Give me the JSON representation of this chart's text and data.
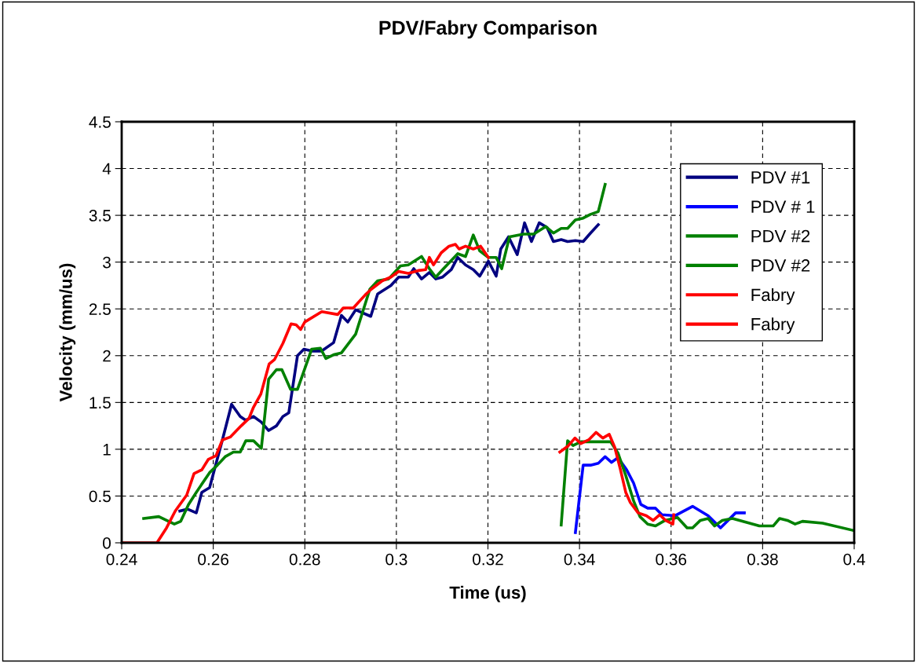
{
  "chart_data": {
    "type": "line",
    "title": "PDV/Fabry Comparison",
    "xlabel": "Time (us)",
    "ylabel": "Velocity (mm/us)",
    "xlim": [
      0.24,
      0.4
    ],
    "xticks": [
      0.24,
      0.26,
      0.28,
      0.3,
      0.32,
      0.34,
      0.36,
      0.38,
      0.4
    ],
    "ylim": [
      0,
      4.5
    ],
    "yticks": [
      0,
      0.5,
      1,
      1.5,
      2,
      2.5,
      3,
      3.5,
      4,
      4.5
    ],
    "grid": true,
    "legend": "top right",
    "line_style": "solid",
    "series": [
      {
        "name": "PDV #1",
        "color": "#000080",
        "x": [
          0.2527,
          0.2544,
          0.2563,
          0.2575,
          0.2592,
          0.262,
          0.264,
          0.2659,
          0.2671,
          0.2688,
          0.2705,
          0.2721,
          0.2738,
          0.2752,
          0.2765,
          0.2784,
          0.2798,
          0.2815,
          0.2837,
          0.2863,
          0.288,
          0.2894,
          0.2911,
          0.2944,
          0.2959,
          0.2988,
          0.3005,
          0.3026,
          0.3038,
          0.3055,
          0.3072,
          0.3086,
          0.3101,
          0.312,
          0.3134,
          0.3151,
          0.3168,
          0.3182,
          0.3201,
          0.3218,
          0.3228,
          0.3245,
          0.3264,
          0.328,
          0.3295,
          0.3312,
          0.3329,
          0.3343,
          0.336,
          0.3374,
          0.3391,
          0.3408,
          0.3424,
          0.3441
        ],
        "values": [
          0.34,
          0.36,
          0.32,
          0.54,
          0.59,
          1.1,
          1.48,
          1.35,
          1.31,
          1.35,
          1.29,
          1.2,
          1.25,
          1.35,
          1.39,
          2.0,
          2.07,
          2.05,
          2.05,
          2.14,
          2.43,
          2.36,
          2.49,
          2.42,
          2.66,
          2.75,
          2.84,
          2.84,
          2.93,
          2.82,
          2.89,
          2.82,
          2.84,
          2.92,
          3.05,
          2.97,
          2.92,
          2.85,
          3.01,
          2.85,
          3.14,
          3.27,
          3.08,
          3.42,
          3.22,
          3.42,
          3.37,
          3.22,
          3.24,
          3.22,
          3.23,
          3.22,
          3.31,
          3.4
        ]
      },
      {
        "name": "PDV # 1",
        "color": "#0000ff",
        "x": [
          0.3391,
          0.3408,
          0.3424,
          0.3441,
          0.3456,
          0.347,
          0.3484,
          0.3503,
          0.3518,
          0.3534,
          0.3549,
          0.3566,
          0.358,
          0.3609,
          0.3647,
          0.3681,
          0.3708,
          0.3741,
          0.376
        ],
        "values": [
          0.11,
          0.83,
          0.83,
          0.85,
          0.92,
          0.86,
          0.91,
          0.78,
          0.64,
          0.41,
          0.37,
          0.37,
          0.3,
          0.29,
          0.39,
          0.29,
          0.16,
          0.32,
          0.32
        ]
      },
      {
        "name": "PDV #2",
        "color": "#008000",
        "x": [
          0.2448,
          0.2481,
          0.2515,
          0.2529,
          0.2546,
          0.2563,
          0.2592,
          0.2609,
          0.2626,
          0.2644,
          0.2659,
          0.2671,
          0.2688,
          0.2705,
          0.2721,
          0.2738,
          0.275,
          0.2769,
          0.2784,
          0.2815,
          0.2834,
          0.2846,
          0.2863,
          0.288,
          0.2911,
          0.2942,
          0.2959,
          0.2983,
          0.3009,
          0.3026,
          0.3055,
          0.3072,
          0.3086,
          0.3103,
          0.3134,
          0.3151,
          0.3168,
          0.3182,
          0.3201,
          0.3218,
          0.323,
          0.3247,
          0.3278,
          0.33,
          0.3326,
          0.3343,
          0.336,
          0.3374,
          0.3391,
          0.3408,
          0.3424,
          0.3441,
          0.3456
        ],
        "values": [
          0.26,
          0.28,
          0.2,
          0.23,
          0.41,
          0.54,
          0.75,
          0.83,
          0.92,
          0.97,
          0.97,
          1.09,
          1.09,
          1.01,
          1.75,
          1.85,
          1.85,
          1.64,
          1.64,
          2.07,
          2.08,
          1.97,
          2.01,
          2.03,
          2.23,
          2.71,
          2.8,
          2.82,
          2.96,
          2.97,
          3.06,
          2.93,
          2.84,
          2.93,
          3.09,
          3.06,
          3.29,
          3.12,
          3.05,
          3.05,
          2.93,
          3.27,
          3.3,
          3.3,
          3.38,
          3.31,
          3.36,
          3.36,
          3.45,
          3.47,
          3.51,
          3.54,
          3.83
        ]
      },
      {
        "name": "PDV #2",
        "color": "#008000",
        "x": [
          0.336,
          0.3374,
          0.3386,
          0.3403,
          0.3429,
          0.3468,
          0.3484,
          0.3501,
          0.3518,
          0.3532,
          0.3549,
          0.3566,
          0.3587,
          0.3614,
          0.3635,
          0.3647,
          0.3664,
          0.3681,
          0.3695,
          0.3712,
          0.3734,
          0.3793,
          0.3823,
          0.3837,
          0.3854,
          0.3871,
          0.3887,
          0.3931,
          0.4
        ],
        "values": [
          0.19,
          1.09,
          1.04,
          1.08,
          1.08,
          1.08,
          0.96,
          0.72,
          0.45,
          0.28,
          0.2,
          0.18,
          0.24,
          0.27,
          0.16,
          0.16,
          0.24,
          0.26,
          0.18,
          0.24,
          0.26,
          0.18,
          0.18,
          0.26,
          0.24,
          0.2,
          0.23,
          0.21,
          0.13
        ]
      },
      {
        "name": "Fabry",
        "color": "#ff0000",
        "x": [
          0.2403,
          0.2477,
          0.2498,
          0.2517,
          0.2542,
          0.2558,
          0.2575,
          0.2589,
          0.2606,
          0.262,
          0.2637,
          0.2661,
          0.2678,
          0.2688,
          0.2704,
          0.2722,
          0.2734,
          0.2752,
          0.277,
          0.2781,
          0.2791,
          0.28,
          0.2837,
          0.2872,
          0.2884,
          0.2906,
          0.2932,
          0.2945,
          0.2969,
          0.2988,
          0.3005,
          0.3026,
          0.3048,
          0.3064,
          0.3072,
          0.3081,
          0.3098,
          0.3115,
          0.3129,
          0.3137,
          0.3151,
          0.3168,
          0.3184,
          0.3201
        ],
        "values": [
          0,
          0,
          0.16,
          0.34,
          0.51,
          0.74,
          0.78,
          0.89,
          0.93,
          1.1,
          1.13,
          1.25,
          1.33,
          1.45,
          1.59,
          1.91,
          1.96,
          2.13,
          2.34,
          2.33,
          2.28,
          2.36,
          2.47,
          2.44,
          2.51,
          2.51,
          2.65,
          2.71,
          2.8,
          2.84,
          2.9,
          2.88,
          2.91,
          2.92,
          3.05,
          2.97,
          3.1,
          3.17,
          3.19,
          3.14,
          3.17,
          3.14,
          3.17,
          3.05
        ]
      },
      {
        "name": "Fabry",
        "color": "#ff0000",
        "x": [
          0.3357,
          0.3374,
          0.339,
          0.3403,
          0.342,
          0.3436,
          0.3451,
          0.3465,
          0.3477,
          0.3489,
          0.3501,
          0.3511,
          0.3528,
          0.3546,
          0.3561,
          0.3575,
          0.3588,
          0.3604,
          0.3606
        ],
        "values": [
          0.97,
          1.03,
          1.12,
          1.06,
          1.1,
          1.18,
          1.12,
          1.16,
          1.02,
          0.79,
          0.54,
          0.43,
          0.32,
          0.29,
          0.24,
          0.3,
          0.24,
          0.2,
          0.3
        ]
      }
    ]
  }
}
